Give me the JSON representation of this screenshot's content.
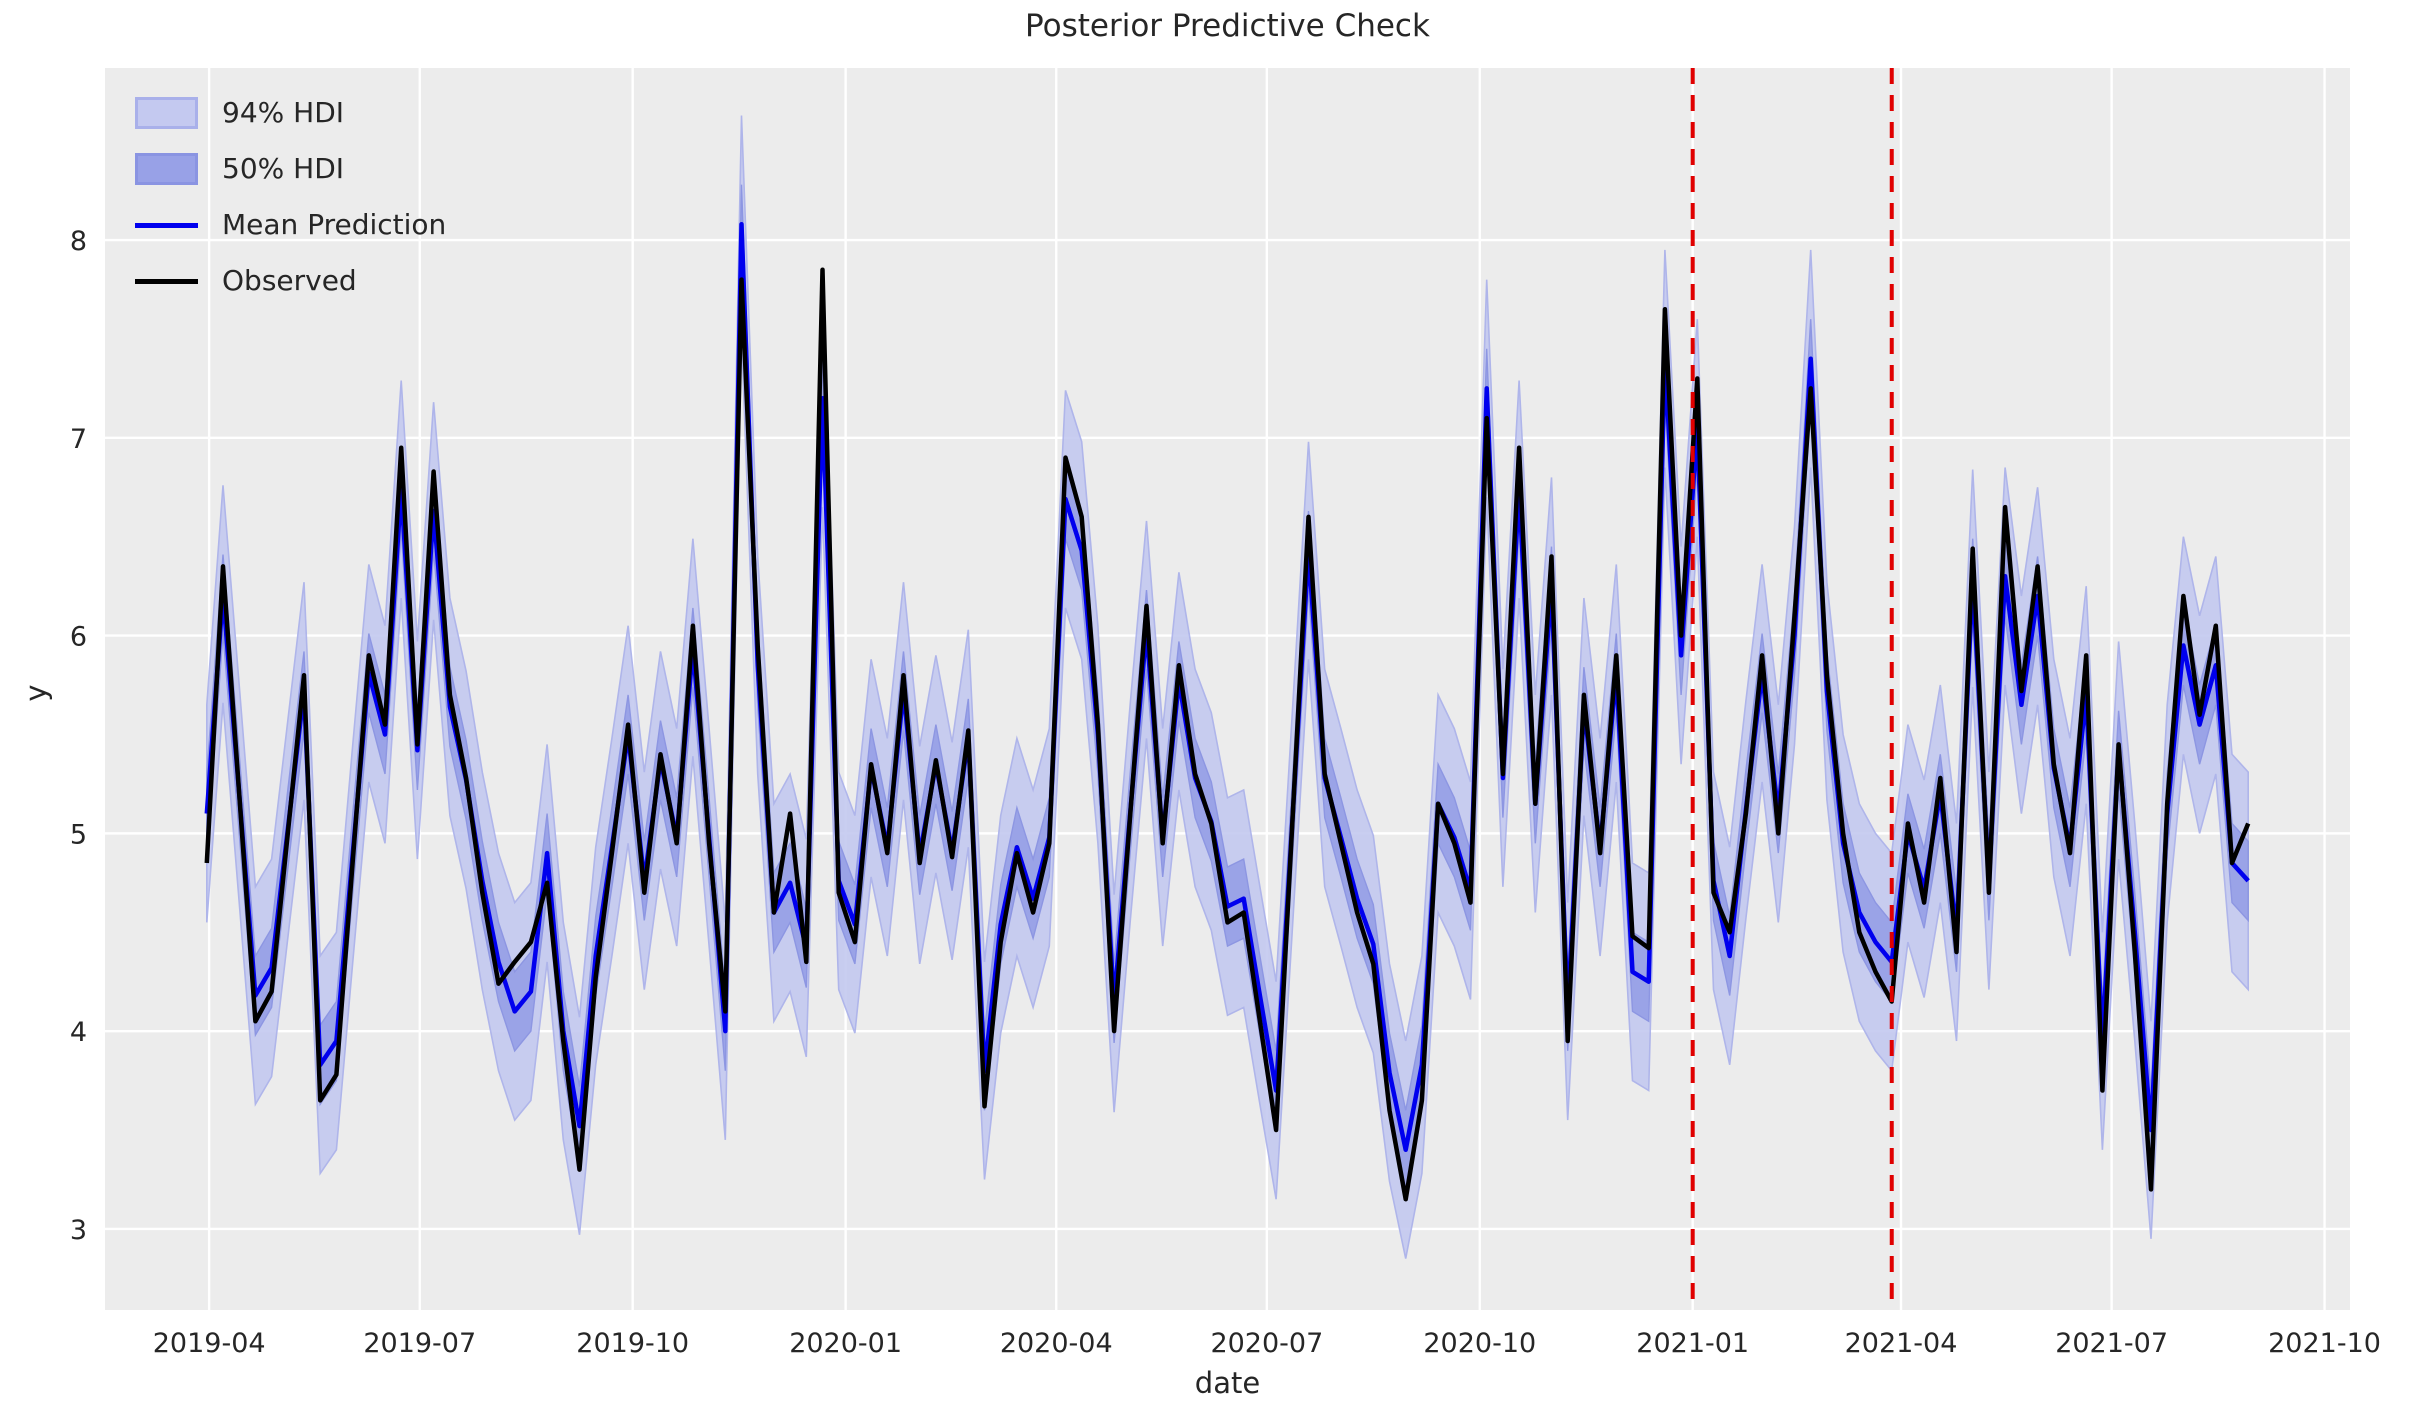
{
  "figure": {
    "title": "Posterior Predictive Check"
  },
  "axes": {
    "xlabel": "date",
    "ylabel": "y",
    "x_ticks": [
      {
        "date": "2019-04-01",
        "label": "2019-04"
      },
      {
        "date": "2019-07-01",
        "label": "2019-07"
      },
      {
        "date": "2019-10-01",
        "label": "2019-10"
      },
      {
        "date": "2020-01-01",
        "label": "2020-01"
      },
      {
        "date": "2020-04-01",
        "label": "2020-04"
      },
      {
        "date": "2020-07-01",
        "label": "2020-07"
      },
      {
        "date": "2020-10-01",
        "label": "2020-10"
      },
      {
        "date": "2021-01-01",
        "label": "2021-01"
      },
      {
        "date": "2021-04-01",
        "label": "2021-04"
      },
      {
        "date": "2021-07-01",
        "label": "2021-07"
      },
      {
        "date": "2021-10-01",
        "label": "2021-10"
      }
    ],
    "y_ticks": [
      3,
      4,
      5,
      6,
      7,
      8
    ],
    "xlim": [
      "2019-02-15",
      "2021-10-12"
    ],
    "ylim": [
      2.59,
      8.87
    ],
    "grid": true
  },
  "legend": {
    "items": [
      {
        "label": "94% HDI",
        "kind": "band",
        "color_key": "hdi94"
      },
      {
        "label": "50% HDI",
        "kind": "band",
        "color_key": "hdi50"
      },
      {
        "label": "Mean Prediction",
        "kind": "line",
        "color_key": "mean"
      },
      {
        "label": "Observed",
        "kind": "line",
        "color_key": "observed"
      }
    ]
  },
  "colors": {
    "plot_bg": "#ececec",
    "grid": "#ffffff",
    "hdi94": "#c4c9f0",
    "hdi94_edge": "#a9b0ea",
    "hdi50": "#98a1e7",
    "hdi50_edge": "#8a94e2",
    "mean": "#0000ee",
    "observed": "#000000",
    "vline": "#e00000",
    "text": "#262626"
  },
  "vlines": {
    "dates": [
      "2021-01-01",
      "2021-03-28"
    ],
    "style": "dashed"
  },
  "chart_data": {
    "type": "line",
    "title": "Posterior Predictive Check",
    "xlabel": "date",
    "ylabel": "y",
    "legend_position": "upper left",
    "x_dates": [
      "2019-03-31",
      "2019-04-07",
      "2019-04-14",
      "2019-04-21",
      "2019-04-28",
      "2019-05-05",
      "2019-05-12",
      "2019-05-19",
      "2019-05-26",
      "2019-06-02",
      "2019-06-09",
      "2019-06-16",
      "2019-06-23",
      "2019-06-30",
      "2019-07-07",
      "2019-07-14",
      "2019-07-21",
      "2019-07-28",
      "2019-08-04",
      "2019-08-11",
      "2019-08-18",
      "2019-08-25",
      "2019-09-01",
      "2019-09-08",
      "2019-09-15",
      "2019-09-22",
      "2019-09-29",
      "2019-10-06",
      "2019-10-13",
      "2019-10-20",
      "2019-10-27",
      "2019-11-03",
      "2019-11-10",
      "2019-11-17",
      "2019-11-24",
      "2019-12-01",
      "2019-12-08",
      "2019-12-15",
      "2019-12-22",
      "2019-12-29",
      "2020-01-05",
      "2020-01-12",
      "2020-01-19",
      "2020-01-26",
      "2020-02-02",
      "2020-02-09",
      "2020-02-16",
      "2020-02-23",
      "2020-03-01",
      "2020-03-08",
      "2020-03-15",
      "2020-03-22",
      "2020-03-29",
      "2020-04-05",
      "2020-04-12",
      "2020-04-19",
      "2020-04-26",
      "2020-05-03",
      "2020-05-10",
      "2020-05-17",
      "2020-05-24",
      "2020-05-31",
      "2020-06-07",
      "2020-06-14",
      "2020-06-21",
      "2020-06-28",
      "2020-07-05",
      "2020-07-12",
      "2020-07-19",
      "2020-07-26",
      "2020-08-02",
      "2020-08-09",
      "2020-08-16",
      "2020-08-23",
      "2020-08-30",
      "2020-09-06",
      "2020-09-13",
      "2020-09-20",
      "2020-09-27",
      "2020-10-04",
      "2020-10-11",
      "2020-10-18",
      "2020-10-25",
      "2020-11-01",
      "2020-11-08",
      "2020-11-15",
      "2020-11-22",
      "2020-11-29",
      "2020-12-06",
      "2020-12-13",
      "2020-12-20",
      "2020-12-27",
      "2021-01-03",
      "2021-01-10",
      "2021-01-17",
      "2021-01-24",
      "2021-01-31",
      "2021-02-07",
      "2021-02-14",
      "2021-02-21",
      "2021-02-28",
      "2021-03-07",
      "2021-03-14",
      "2021-03-21",
      "2021-03-28",
      "2021-04-04",
      "2021-04-11",
      "2021-04-18",
      "2021-04-25",
      "2021-05-02",
      "2021-05-09",
      "2021-05-16",
      "2021-05-23",
      "2021-05-30",
      "2021-06-06",
      "2021-06-13",
      "2021-06-20",
      "2021-06-27",
      "2021-07-04",
      "2021-07-11",
      "2021-07-18",
      "2021-07-25",
      "2021-08-01",
      "2021-08-08",
      "2021-08-15",
      "2021-08-22",
      "2021-08-29"
    ],
    "series": [
      {
        "name": "Observed",
        "values": [
          4.85,
          6.35,
          5.2,
          4.05,
          4.2,
          5.0,
          5.8,
          3.65,
          3.78,
          4.85,
          5.9,
          5.55,
          6.95,
          5.45,
          6.83,
          5.7,
          5.28,
          4.7,
          4.24,
          4.35,
          4.45,
          4.75,
          3.95,
          3.3,
          4.27,
          4.9,
          5.55,
          4.7,
          5.4,
          4.95,
          6.05,
          4.95,
          4.1,
          7.8,
          5.95,
          4.6,
          5.1,
          4.35,
          7.85,
          4.7,
          4.45,
          5.35,
          4.9,
          5.8,
          4.85,
          5.37,
          4.88,
          5.52,
          3.62,
          4.45,
          4.9,
          4.6,
          4.95,
          6.9,
          6.6,
          5.55,
          4.0,
          5.1,
          6.15,
          4.95,
          5.85,
          5.3,
          5.05,
          4.55,
          4.6,
          4.05,
          3.5,
          5.05,
          6.6,
          5.3,
          4.95,
          4.6,
          4.34,
          3.6,
          3.15,
          3.65,
          5.15,
          4.95,
          4.65,
          7.1,
          5.3,
          6.95,
          5.15,
          6.4,
          3.95,
          5.7,
          4.9,
          5.9,
          4.48,
          4.42,
          7.65,
          6.0,
          7.3,
          4.7,
          4.5,
          5.1,
          5.9,
          5.0,
          6.1,
          7.25,
          5.8,
          5.0,
          4.5,
          4.3,
          4.15,
          5.05,
          4.65,
          5.28,
          4.4,
          6.44,
          4.7,
          6.65,
          5.72,
          6.35,
          5.35,
          4.9,
          5.9,
          3.7,
          5.45,
          4.4,
          3.2,
          5.15,
          6.2,
          5.6,
          6.05,
          4.85,
          5.05
        ]
      },
      {
        "name": "Mean Prediction",
        "values": [
          5.1,
          6.21,
          5.2,
          4.18,
          4.32,
          5.02,
          5.72,
          3.83,
          3.95,
          4.89,
          5.81,
          5.5,
          6.74,
          5.42,
          6.63,
          5.64,
          5.27,
          4.76,
          4.35,
          4.1,
          4.2,
          4.9,
          4.0,
          3.52,
          4.38,
          4.93,
          5.5,
          4.76,
          5.37,
          4.98,
          5.94,
          4.98,
          4.0,
          8.08,
          5.85,
          4.6,
          4.75,
          4.42,
          7.2,
          4.76,
          4.54,
          5.33,
          4.93,
          5.72,
          4.89,
          5.35,
          4.91,
          5.48,
          3.8,
          4.54,
          4.93,
          4.67,
          4.98,
          6.69,
          6.43,
          5.5,
          4.14,
          5.11,
          6.03,
          4.98,
          5.77,
          5.28,
          5.06,
          4.63,
          4.67,
          4.18,
          3.7,
          5.06,
          6.43,
          5.28,
          4.98,
          4.67,
          4.44,
          3.79,
          3.4,
          3.83,
          5.15,
          4.98,
          4.71,
          7.25,
          5.28,
          6.74,
          5.15,
          6.25,
          4.1,
          5.64,
          4.93,
          5.81,
          4.3,
          4.25,
          7.4,
          5.9,
          7.05,
          4.76,
          4.38,
          5.12,
          5.81,
          5.1,
          6.0,
          7.4,
          5.72,
          4.95,
          4.6,
          4.45,
          4.35,
          5.0,
          4.72,
          5.2,
          4.5,
          6.29,
          4.76,
          6.3,
          5.65,
          6.2,
          5.33,
          4.93,
          5.7,
          3.95,
          5.42,
          4.5,
          3.5,
          5.1,
          5.95,
          5.55,
          5.85,
          4.85,
          4.76
        ]
      }
    ],
    "hdi94_halfwidth": 0.55,
    "hdi50_halfwidth": 0.2,
    "vline_dates": [
      "2021-01-01",
      "2021-03-28"
    ],
    "ylim": [
      2.59,
      8.87
    ],
    "xlim": [
      "2019-02-15",
      "2021-10-12"
    ]
  }
}
